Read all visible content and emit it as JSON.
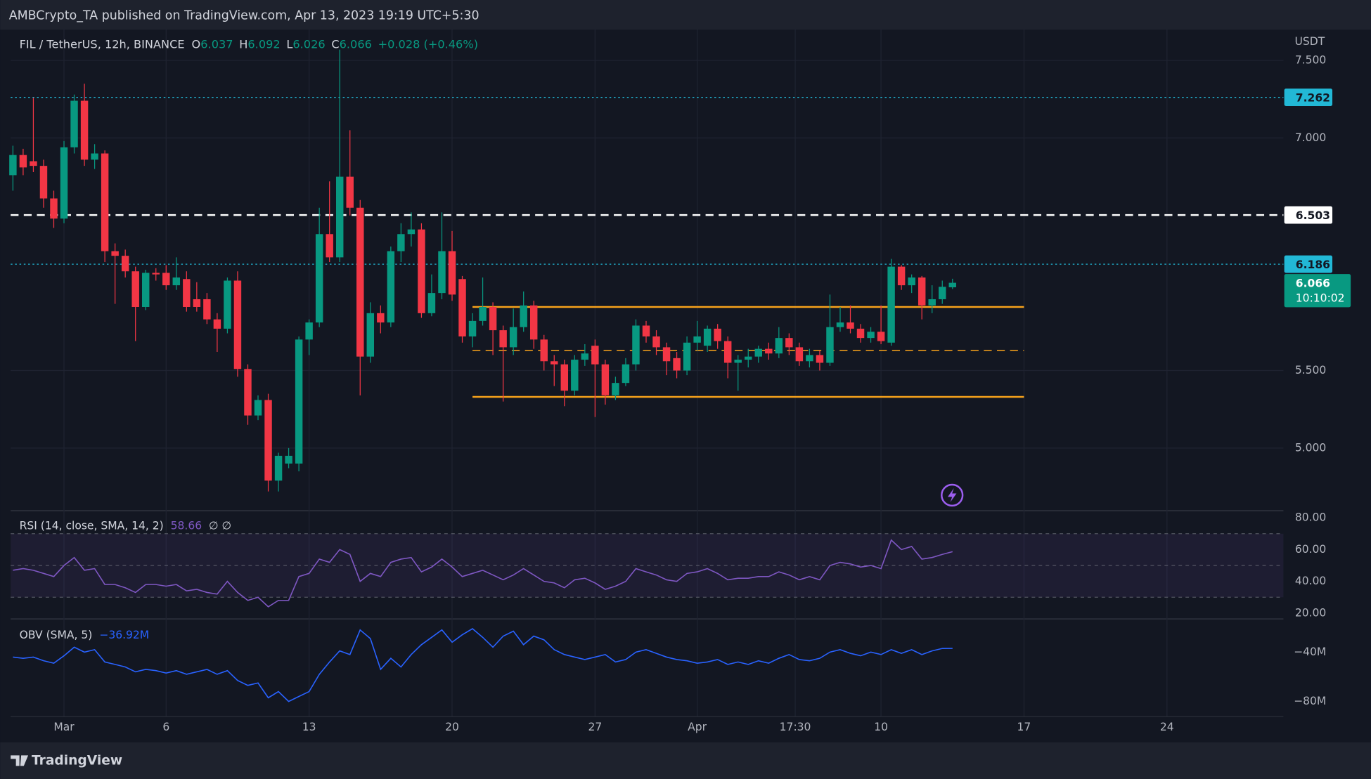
{
  "header": {
    "publisher": "AMBCrypto_TA published on TradingView.com, Apr 13, 2023 19:19 UTC+5:30",
    "brand": "TradingView"
  },
  "chart_data": [
    {
      "type": "candlestick",
      "title": "FIL / TetherUS, 12h, BINANCE",
      "legend_letters": [
        "O",
        "H",
        "L",
        "C"
      ],
      "change_label": "+0.028 (+0.46%)",
      "currency": "USDT",
      "last_price_timer": "10:10:02",
      "up_color": "#089981",
      "down_color": "#f23645",
      "open": [
        6.76,
        6.89,
        6.85,
        6.82,
        6.61,
        6.48,
        6.94,
        7.24,
        6.86,
        6.9,
        6.27,
        6.24,
        6.14,
        5.91,
        6.13,
        6.13,
        6.05,
        6.09,
        5.96,
        5.96,
        5.83,
        5.77,
        6.08,
        5.51,
        5.21,
        5.31,
        4.79,
        4.9,
        4.9,
        5.7,
        5.81,
        6.38,
        6.23,
        6.75,
        6.55,
        5.59,
        5.87,
        5.81,
        6.27,
        6.38,
        6.41,
        5.87,
        6.0,
        6.27,
        6.09,
        5.72,
        5.82,
        5.91,
        5.76,
        5.65,
        5.78,
        5.92,
        5.7,
        5.56,
        5.54,
        5.37,
        5.57,
        5.66,
        5.54,
        5.34,
        5.42,
        5.54,
        5.79,
        5.72,
        5.65,
        5.58,
        5.5,
        5.68,
        5.66,
        5.77,
        5.69,
        5.55,
        5.57,
        5.59,
        5.64,
        5.61,
        5.71,
        5.65,
        5.56,
        5.6,
        5.55,
        5.78,
        5.81,
        5.77,
        5.71,
        5.75,
        5.68,
        6.17,
        6.05,
        6.1,
        5.92,
        5.96,
        6.037
      ],
      "high": [
        6.95,
        6.93,
        7.26,
        6.86,
        6.66,
        6.98,
        7.28,
        7.35,
        6.96,
        6.92,
        6.32,
        6.28,
        6.17,
        6.15,
        6.16,
        6.18,
        6.23,
        6.14,
        6.07,
        6.0,
        5.87,
        6.1,
        6.14,
        5.54,
        5.34,
        5.35,
        4.97,
        5.0,
        5.72,
        5.83,
        6.55,
        6.72,
        7.57,
        7.05,
        6.6,
        5.94,
        5.92,
        6.3,
        6.45,
        6.52,
        6.45,
        6.12,
        6.52,
        6.4,
        6.11,
        5.87,
        6.1,
        5.94,
        5.79,
        5.9,
        6.01,
        5.95,
        5.73,
        5.6,
        5.57,
        5.6,
        5.67,
        5.7,
        5.57,
        5.46,
        5.58,
        5.83,
        5.82,
        5.76,
        5.68,
        5.62,
        5.72,
        5.82,
        5.79,
        5.8,
        5.72,
        5.6,
        5.64,
        5.66,
        5.68,
        5.78,
        5.74,
        5.68,
        5.64,
        5.63,
        5.99,
        5.91,
        5.92,
        5.8,
        5.78,
        5.92,
        6.22,
        6.18,
        6.12,
        6.11,
        6.05,
        6.08,
        6.092
      ],
      "low": [
        6.66,
        6.76,
        6.78,
        6.55,
        6.42,
        6.45,
        6.9,
        6.82,
        6.8,
        6.2,
        5.93,
        6.1,
        5.69,
        5.89,
        6.08,
        6.02,
        6.02,
        5.88,
        5.88,
        5.8,
        5.62,
        5.74,
        5.46,
        5.15,
        5.18,
        4.72,
        4.72,
        4.87,
        4.85,
        5.6,
        5.78,
        6.2,
        6.2,
        6.5,
        5.34,
        5.55,
        5.74,
        5.78,
        6.2,
        6.3,
        5.84,
        5.85,
        5.96,
        5.95,
        5.68,
        5.65,
        5.79,
        5.6,
        5.3,
        5.6,
        5.75,
        5.64,
        5.5,
        5.4,
        5.27,
        5.34,
        5.53,
        5.2,
        5.28,
        5.31,
        5.4,
        5.5,
        5.68,
        5.6,
        5.47,
        5.45,
        5.47,
        5.63,
        5.62,
        5.64,
        5.45,
        5.37,
        5.52,
        5.55,
        5.57,
        5.58,
        5.6,
        5.53,
        5.52,
        5.5,
        5.53,
        5.75,
        5.74,
        5.68,
        5.68,
        5.67,
        5.66,
        6.02,
        6.0,
        5.83,
        5.87,
        5.93,
        6.026
      ],
      "close": [
        6.89,
        6.81,
        6.82,
        6.61,
        6.48,
        6.94,
        7.24,
        6.86,
        6.9,
        6.27,
        6.24,
        6.14,
        5.91,
        6.13,
        6.12,
        6.05,
        6.1,
        5.91,
        5.91,
        5.83,
        5.77,
        6.08,
        5.51,
        5.21,
        5.31,
        4.79,
        4.95,
        4.95,
        5.7,
        5.81,
        6.38,
        6.23,
        6.75,
        6.55,
        5.59,
        5.87,
        5.81,
        6.27,
        6.38,
        6.41,
        5.87,
        6.0,
        6.27,
        5.99,
        5.72,
        5.82,
        5.91,
        5.76,
        5.65,
        5.78,
        5.92,
        5.7,
        5.56,
        5.54,
        5.37,
        5.57,
        5.61,
        5.54,
        5.34,
        5.42,
        5.54,
        5.79,
        5.72,
        5.65,
        5.56,
        5.5,
        5.68,
        5.72,
        5.77,
        5.69,
        5.55,
        5.57,
        5.59,
        5.64,
        5.61,
        5.71,
        5.65,
        5.56,
        5.6,
        5.55,
        5.78,
        5.81,
        5.77,
        5.71,
        5.75,
        5.69,
        6.17,
        6.05,
        6.1,
        5.92,
        5.96,
        6.04,
        6.066
      ],
      "xlim": [
        -0.22,
        124.4
      ],
      "xticks": [
        {
          "value": 5,
          "label": "Mar"
        },
        {
          "value": 15,
          "label": "6"
        },
        {
          "value": 29,
          "label": "13"
        },
        {
          "value": 43,
          "label": "20"
        },
        {
          "value": 57,
          "label": "27"
        },
        {
          "value": 67,
          "label": "Apr"
        },
        {
          "value": 76.6,
          "label": "17:30"
        },
        {
          "value": 85,
          "label": "10"
        },
        {
          "value": 99,
          "label": "17"
        },
        {
          "value": 113,
          "label": "24"
        }
      ],
      "ylim": [
        4.606,
        7.704
      ],
      "yticks": [
        {
          "value": 5,
          "label": "5.000"
        },
        {
          "value": 5.5,
          "label": "5.500"
        },
        {
          "value": 7,
          "label": "7.000"
        },
        {
          "value": 7.5,
          "label": "7.500"
        }
      ],
      "grid": true,
      "levels": [
        {
          "value": 7.262,
          "color": "#22b8d6",
          "style": "dotted"
        },
        {
          "value": 6.503,
          "color": "#ffffff",
          "style": "dashed"
        },
        {
          "value": 6.186,
          "color": "#22b8d6",
          "style": "dotted"
        }
      ],
      "box": {
        "from": 45,
        "to": 99,
        "values": [
          5.91,
          5.63,
          5.33
        ],
        "styles": [
          "solid",
          "dashed",
          "solid"
        ],
        "color": "#f7a21b"
      }
    },
    {
      "type": "line",
      "title": "RSI (14, close, SMA, 14, 2)",
      "legend_suffix": "∅ ∅",
      "color": "#7e57c2",
      "values": [
        47,
        48,
        47,
        45,
        43,
        50,
        55,
        47,
        48,
        38,
        38,
        36,
        33,
        38,
        38,
        37,
        38,
        34,
        35,
        33,
        32,
        40,
        33,
        28,
        30,
        24,
        28,
        28,
        43,
        45,
        54,
        52,
        60,
        57,
        40,
        45,
        43,
        52,
        54,
        55,
        46,
        49,
        54,
        49,
        43,
        45,
        47,
        44,
        41,
        44,
        48,
        44,
        40,
        39,
        36,
        41,
        42,
        39,
        35,
        37,
        40,
        48,
        46,
        44,
        41,
        40,
        45,
        46,
        48,
        45,
        41,
        42,
        42,
        43,
        43,
        46,
        44,
        41,
        43,
        41,
        50,
        52,
        51,
        49,
        50,
        48,
        66,
        60,
        62,
        54,
        55,
        57,
        58.66
      ],
      "ylim": [
        17.3,
        83.8
      ],
      "yticks": [
        {
          "value": 20,
          "label": "20.00"
        },
        {
          "value": 40,
          "label": "40.00"
        },
        {
          "value": 60,
          "label": "60.00"
        },
        {
          "value": 80,
          "label": "80.00"
        }
      ],
      "bands": [
        70,
        50,
        30
      ]
    },
    {
      "type": "line",
      "title": "OBV (SMA, 5)",
      "legend_value": "−36.92M",
      "color": "#2962ff",
      "values": [
        -44,
        -45,
        -44,
        -47,
        -49,
        -43,
        -36,
        -40,
        -38,
        -48,
        -50,
        -52,
        -56,
        -54,
        -55,
        -57,
        -55,
        -58,
        -56,
        -54,
        -58,
        -55,
        -63,
        -67,
        -65,
        -77,
        -72,
        -80,
        -76,
        -72,
        -58,
        -48,
        -39,
        -42,
        -22,
        -29,
        -54,
        -45,
        -52,
        -42,
        -34,
        -28,
        -22,
        -32,
        -26,
        -21,
        -28,
        -36,
        -27,
        -23,
        -34,
        -27,
        -30,
        -38,
        -42,
        -44,
        -46,
        -44,
        -42,
        -48,
        -46,
        -40,
        -38,
        -41,
        -44,
        -46,
        -47,
        -49,
        -48,
        -46,
        -50,
        -48,
        -50,
        -47,
        -49,
        -45,
        -42,
        -46,
        -47,
        -45,
        -40,
        -38,
        -41,
        -43,
        -40,
        -42,
        -38,
        -41,
        -38,
        -42,
        -39,
        -37,
        -36.92
      ],
      "ylim": [
        -91.2,
        -14
      ],
      "yticks": [
        {
          "value": -80,
          "label": "−80M"
        },
        {
          "value": -40,
          "label": "−40M"
        }
      ]
    }
  ]
}
